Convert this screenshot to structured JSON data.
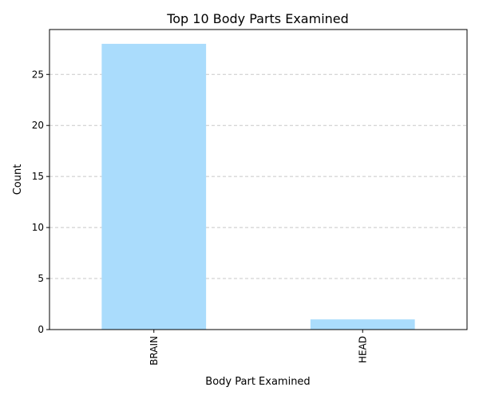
{
  "chart_data": {
    "type": "bar",
    "title": "Top 10 Body Parts Examined",
    "xlabel": "Body Part Examined",
    "ylabel": "Count",
    "categories": [
      "BRAIN",
      "HEAD"
    ],
    "values": [
      28,
      1
    ],
    "ylim": [
      0,
      29.4
    ],
    "yticks": [
      0,
      5,
      10,
      15,
      20,
      25
    ],
    "grid": "y-dashed",
    "legend": "none",
    "bar_color": "#aadcfc",
    "grid_color": "#c8c8c8",
    "x_tick_rotation": "vertical"
  }
}
